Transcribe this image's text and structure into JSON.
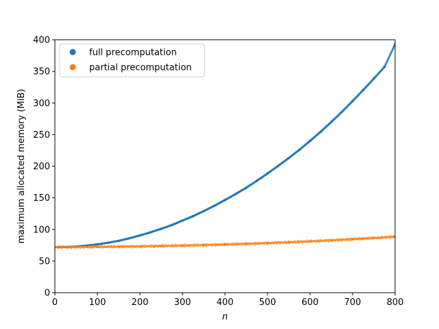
{
  "chart_data": {
    "type": "scatter",
    "title": "",
    "xlabel": "n",
    "ylabel": "maximum allocated memory (MiB)",
    "xlim": [
      0,
      800
    ],
    "ylim": [
      0,
      400
    ],
    "xticks": [
      0,
      100,
      200,
      300,
      400,
      500,
      600,
      700,
      800
    ],
    "yticks": [
      0,
      50,
      100,
      150,
      200,
      250,
      300,
      350,
      400
    ],
    "grid": false,
    "legend_position": "top-left",
    "series": [
      {
        "name": "full precomputation",
        "color": "#1f77b4",
        "x": [
          0,
          25,
          50,
          75,
          100,
          125,
          150,
          175,
          200,
          225,
          250,
          275,
          300,
          325,
          350,
          375,
          400,
          425,
          450,
          475,
          500,
          525,
          550,
          575,
          600,
          625,
          650,
          675,
          700,
          725,
          750,
          775,
          800
        ],
        "y": [
          72.0,
          72.3,
          73.0,
          74.5,
          76.5,
          79.0,
          82.0,
          86.0,
          90.5,
          95.5,
          101.0,
          107.0,
          114.0,
          121.0,
          129.0,
          137.5,
          146.5,
          156.0,
          166.0,
          177.0,
          188.5,
          200.5,
          213.0,
          226.0,
          240.0,
          254.5,
          270.0,
          286.0,
          303.0,
          320.5,
          338.5,
          357.0,
          393.0
        ]
      },
      {
        "name": "partial precomputation",
        "color": "#ff7f0e",
        "x": [
          0,
          50,
          100,
          150,
          200,
          250,
          300,
          350,
          400,
          450,
          500,
          550,
          600,
          650,
          700,
          750,
          800
        ],
        "y": [
          72.0,
          72.2,
          72.5,
          72.8,
          73.2,
          73.8,
          74.5,
          75.3,
          76.2,
          77.2,
          78.4,
          79.7,
          81.2,
          82.8,
          84.6,
          86.5,
          88.5
        ]
      }
    ]
  }
}
